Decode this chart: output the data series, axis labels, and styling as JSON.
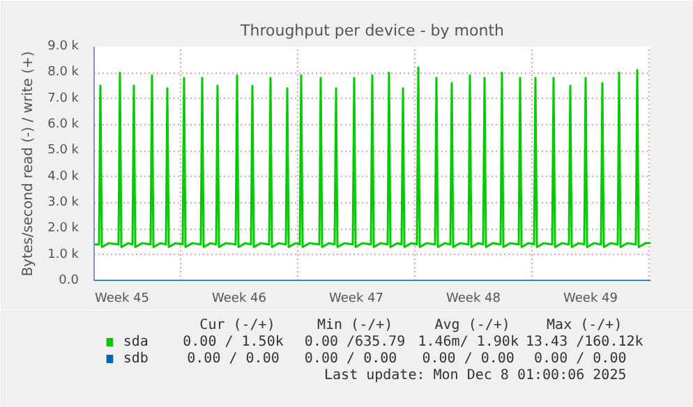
{
  "chart_data": {
    "type": "line",
    "title": "Throughput per device - by month",
    "ylabel": "Bytes/second read (-) / write (+)",
    "xlim": [
      "2025-11-04T20:00",
      "2025-12-08T02:00"
    ],
    "ylim": [
      0,
      9000
    ],
    "xticks": [
      {
        "value": "2025-11-06T12:00",
        "label": "Week 45"
      },
      {
        "value": "2025-11-10T00:00",
        "label": null
      },
      {
        "value": "2025-11-13T12:00",
        "label": "Week 46"
      },
      {
        "value": "2025-11-17T00:00",
        "label": null
      },
      {
        "value": "2025-11-20T12:00",
        "label": "Week 47"
      },
      {
        "value": "2025-11-24T00:00",
        "label": null
      },
      {
        "value": "2025-11-27T12:00",
        "label": "Week 48"
      },
      {
        "value": "2025-12-01T00:00",
        "label": null
      },
      {
        "value": "2025-12-04T12:00",
        "label": "Week 49"
      },
      {
        "value": "2025-12-08T00:00",
        "label": null
      }
    ],
    "yticks": [
      {
        "value": 0,
        "label": "0.0"
      },
      {
        "value": 1000,
        "label": "1.0 k"
      },
      {
        "value": 2000,
        "label": "2.0 k"
      },
      {
        "value": 3000,
        "label": "3.0 k"
      },
      {
        "value": 4000,
        "label": "4.0 k"
      },
      {
        "value": 5000,
        "label": "5.0 k"
      },
      {
        "value": 6000,
        "label": "6.0 k"
      },
      {
        "value": 7000,
        "label": "7.0 k"
      },
      {
        "value": 8000,
        "label": "8.0 k"
      },
      {
        "value": 9000,
        "label": "9.0 k"
      }
    ],
    "grid": true,
    "legend": "bottom",
    "series": [
      {
        "name": "sda",
        "color": "#00cc00",
        "x": [
          "2025-11-04T20:00",
          "2025-11-05T03:00",
          "2025-11-05T05:00",
          "2025-11-05T07:00",
          "2025-11-05T17:00",
          "2025-11-06T07:00",
          "2025-11-06T09:00",
          "2025-11-06T11:00",
          "2025-11-06T21:00",
          "2025-11-07T03:00",
          "2025-11-07T05:00",
          "2025-11-07T07:00",
          "2025-11-07T17:00",
          "2025-11-08T05:00",
          "2025-11-08T07:00",
          "2025-11-08T09:00",
          "2025-11-08T19:00",
          "2025-11-09T03:00",
          "2025-11-09T05:00",
          "2025-11-09T07:00",
          "2025-11-09T17:00",
          "2025-11-10T03:00",
          "2025-11-10T05:00",
          "2025-11-10T07:00",
          "2025-11-10T17:00",
          "2025-11-11T05:00",
          "2025-11-11T07:00",
          "2025-11-11T09:00",
          "2025-11-11T19:00",
          "2025-11-12T03:00",
          "2025-11-12T05:00",
          "2025-11-12T07:00",
          "2025-11-12T17:00",
          "2025-11-13T07:00",
          "2025-11-13T09:00",
          "2025-11-13T11:00",
          "2025-11-13T21:00",
          "2025-11-14T05:00",
          "2025-11-14T07:00",
          "2025-11-14T09:00",
          "2025-11-14T19:00",
          "2025-11-15T07:00",
          "2025-11-15T09:00",
          "2025-11-15T11:00",
          "2025-11-15T21:00",
          "2025-11-16T07:00",
          "2025-11-16T09:00",
          "2025-11-16T11:00",
          "2025-11-16T21:00",
          "2025-11-17T03:00",
          "2025-11-17T05:00",
          "2025-11-17T07:00",
          "2025-11-17T17:00",
          "2025-11-18T07:00",
          "2025-11-18T09:00",
          "2025-11-18T11:00",
          "2025-11-18T21:00",
          "2025-11-19T05:00",
          "2025-11-19T07:00",
          "2025-11-19T09:00",
          "2025-11-19T19:00",
          "2025-11-20T07:00",
          "2025-11-20T09:00",
          "2025-11-20T11:00",
          "2025-11-20T21:00",
          "2025-11-21T09:00",
          "2025-11-21T11:00",
          "2025-11-21T13:00",
          "2025-11-21T23:00",
          "2025-11-22T09:00",
          "2025-11-22T11:00",
          "2025-11-22T13:00",
          "2025-11-22T23:00",
          "2025-11-23T05:00",
          "2025-11-23T07:00",
          "2025-11-23T09:00",
          "2025-11-23T19:00",
          "2025-11-24T03:00",
          "2025-11-24T05:00",
          "2025-11-24T07:00",
          "2025-11-24T17:00",
          "2025-11-25T05:00",
          "2025-11-25T07:00",
          "2025-11-25T09:00",
          "2025-11-25T19:00",
          "2025-11-26T03:00",
          "2025-11-26T05:00",
          "2025-11-26T07:00",
          "2025-11-26T17:00",
          "2025-11-27T05:00",
          "2025-11-27T07:00",
          "2025-11-27T09:00",
          "2025-11-27T19:00",
          "2025-11-28T02:00",
          "2025-11-28T04:00",
          "2025-11-28T06:00",
          "2025-11-28T16:00",
          "2025-11-29T03:00",
          "2025-11-29T05:00",
          "2025-11-29T07:00",
          "2025-11-29T17:00",
          "2025-11-30T05:00",
          "2025-11-30T07:00",
          "2025-11-30T09:00",
          "2025-11-30T19:00",
          "2025-12-01T03:00",
          "2025-12-01T05:00",
          "2025-12-01T07:00",
          "2025-12-01T17:00",
          "2025-12-02T05:00",
          "2025-12-02T07:00",
          "2025-12-02T09:00",
          "2025-12-02T19:00",
          "2025-12-03T05:00",
          "2025-12-03T07:00",
          "2025-12-03T09:00",
          "2025-12-03T19:00",
          "2025-12-04T03:00",
          "2025-12-04T05:00",
          "2025-12-04T07:00",
          "2025-12-04T17:00",
          "2025-12-05T03:00",
          "2025-12-05T05:00",
          "2025-12-05T07:00",
          "2025-12-05T17:00",
          "2025-12-06T03:00",
          "2025-12-06T05:00",
          "2025-12-06T07:00",
          "2025-12-06T17:00",
          "2025-12-07T05:00",
          "2025-12-07T07:00",
          "2025-12-07T09:00",
          "2025-12-07T19:00",
          "2025-12-08T02:00"
        ],
        "values": [
          1400,
          1400,
          7500,
          1300,
          1450,
          1400,
          8000,
          1300,
          1450,
          1400,
          7500,
          1300,
          1450,
          1400,
          7900,
          1300,
          1450,
          1400,
          7400,
          1300,
          1450,
          1400,
          7800,
          1300,
          1450,
          1400,
          7800,
          1300,
          1450,
          1400,
          7500,
          1300,
          1450,
          1400,
          7900,
          1300,
          1450,
          1400,
          7500,
          1300,
          1450,
          1400,
          7800,
          1300,
          1450,
          1400,
          7400,
          1300,
          1450,
          1400,
          7900,
          1300,
          1450,
          1400,
          7800,
          1300,
          1450,
          1400,
          7400,
          1300,
          1450,
          1400,
          7800,
          1300,
          1450,
          1400,
          7900,
          1300,
          1450,
          1400,
          8000,
          1300,
          1450,
          1400,
          7400,
          1300,
          1450,
          1400,
          8200,
          1300,
          1450,
          1400,
          7800,
          1300,
          1450,
          1400,
          7600,
          1300,
          1450,
          1400,
          7900,
          1300,
          1450,
          1400,
          7800,
          1300,
          1450,
          1400,
          8000,
          1300,
          1450,
          1400,
          7800,
          1300,
          1450,
          1400,
          7800,
          1300,
          1450,
          1400,
          7800,
          1300,
          1450,
          1400,
          7500,
          1300,
          1450,
          1400,
          7800,
          1300,
          1450,
          1400,
          7600,
          1300,
          1450,
          1400,
          8000,
          1300,
          1450,
          1400,
          8100,
          1300,
          1450,
          1450
        ]
      },
      {
        "name": "sdb",
        "color": "#0066b3",
        "x": [
          "2025-11-04T20:00",
          "2025-12-08T02:00"
        ],
        "values": [
          0,
          0
        ]
      }
    ],
    "annotations": [
      "Cur (-/+)",
      "Min (-/+)",
      "Avg (-/+)",
      "Max (-/+)",
      "0.00 /  1.50k",
      "0.00 /635.79",
      "1.46m/  1.90k",
      "13.43 /160.12k",
      "0.00 /  0.00",
      "0.00 /  0.00",
      "0.00 /  0.00",
      "0.00 /  0.00",
      "Last update: Mon Dec  8 01:00:06 2025"
    ]
  }
}
